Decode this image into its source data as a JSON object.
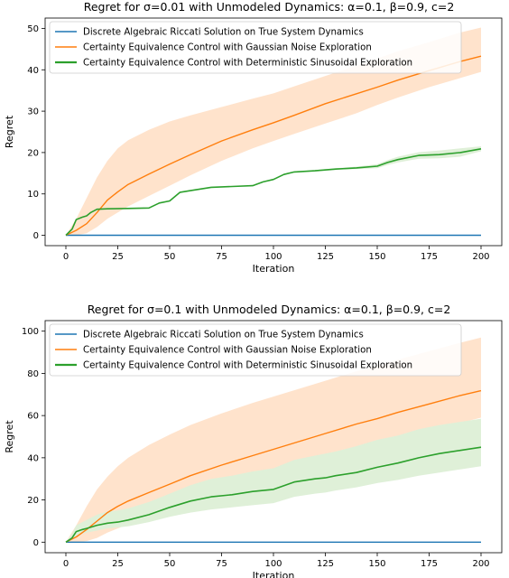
{
  "chart_data": [
    {
      "type": "line",
      "title": "Regret for σ=0.01 with Unmodeled Dynamics: α=0.1, β=0.9, c=2",
      "xlabel": "Iteration",
      "ylabel": "Regret",
      "xlim": [
        -10,
        210
      ],
      "ylim": [
        -2.5,
        52.5
      ],
      "xticks": [
        0,
        25,
        50,
        75,
        100,
        125,
        150,
        175,
        200
      ],
      "yticks": [
        0,
        10,
        20,
        30,
        40,
        50
      ],
      "grid": false,
      "legend_position": "top-left",
      "series": [
        {
          "name": "Discrete Algebraic Riccati Solution on True System Dynamics",
          "color": "#1f77b4",
          "x": [
            0,
            200
          ],
          "y": [
            0,
            0
          ]
        },
        {
          "name": "Certainty Equivalence Control with Gaussian Noise Exploration",
          "color": "#ff7f0e",
          "x": [
            0,
            5,
            10,
            15,
            20,
            25,
            30,
            40,
            50,
            60,
            75,
            90,
            100,
            110,
            125,
            140,
            150,
            160,
            175,
            190,
            200
          ],
          "y": [
            0,
            1.2,
            2.8,
            5.5,
            8.5,
            10.5,
            12.3,
            14.8,
            17.2,
            19.5,
            22.8,
            25.5,
            27.2,
            29,
            31.8,
            34.2,
            35.8,
            37.5,
            39.8,
            42,
            43.3
          ],
          "band_upper": [
            0,
            4,
            9,
            14,
            18,
            21,
            23,
            25.5,
            27.5,
            29,
            31,
            33,
            34.3,
            36,
            38.5,
            41,
            42.7,
            44.5,
            46.7,
            49,
            50.2
          ],
          "band_lower": [
            0,
            0,
            0.5,
            2,
            4,
            5.5,
            7,
            9.5,
            12,
            14.5,
            18,
            21,
            22.8,
            24.5,
            27,
            29.5,
            31.5,
            33.3,
            35.8,
            38,
            39.5
          ],
          "band_color": "#ffe3cc"
        },
        {
          "name": "Certainty Equivalence Control with Deterministic Sinusoidal Exploration",
          "color": "#2ca02c",
          "x": [
            0,
            3,
            5,
            8,
            10,
            12,
            15,
            20,
            30,
            40,
            45,
            50,
            55,
            60,
            70,
            80,
            90,
            95,
            100,
            105,
            110,
            120,
            130,
            140,
            150,
            155,
            160,
            170,
            180,
            190,
            200
          ],
          "y": [
            0,
            1.5,
            3.8,
            4.4,
            4.7,
            5.5,
            6.3,
            6.4,
            6.5,
            6.6,
            7.8,
            8.3,
            10.4,
            10.8,
            11.6,
            11.8,
            12,
            12.9,
            13.5,
            14.7,
            15.3,
            15.6,
            16,
            16.3,
            16.7,
            17.6,
            18.3,
            19.3,
            19.5,
            20,
            20.9
          ],
          "band_upper": [
            0,
            1.5,
            3.8,
            4.4,
            4.7,
            5.5,
            6.3,
            6.4,
            6.5,
            6.6,
            7.8,
            8.3,
            10.4,
            10.8,
            11.6,
            11.8,
            12.1,
            13,
            13.6,
            14.8,
            15.4,
            15.8,
            16.2,
            16.6,
            17.2,
            18.2,
            19,
            20.1,
            20.5,
            21,
            21.5
          ],
          "band_lower": [
            0,
            1.5,
            3.8,
            4.4,
            4.7,
            5.5,
            6.3,
            6.4,
            6.5,
            6.6,
            7.8,
            8.3,
            10.4,
            10.8,
            11.6,
            11.8,
            11.9,
            12.8,
            13.4,
            14.6,
            15.2,
            15.4,
            15.8,
            16.0,
            16.2,
            17.0,
            17.6,
            18.5,
            18.6,
            19,
            20.3
          ],
          "band_color": "#dff0d8"
        }
      ]
    },
    {
      "type": "line",
      "title": "Regret for σ=0.1 with Unmodeled Dynamics: α=0.1, β=0.9, c=2",
      "xlabel": "Iteration",
      "ylabel": "Regret",
      "xlim": [
        -10,
        210
      ],
      "ylim": [
        -5,
        105
      ],
      "xticks": [
        0,
        25,
        50,
        75,
        100,
        125,
        150,
        175,
        200
      ],
      "yticks": [
        0,
        20,
        40,
        60,
        80,
        100
      ],
      "grid": false,
      "legend_position": "top-left",
      "series": [
        {
          "name": "Discrete Algebraic Riccati Solution on True System Dynamics",
          "color": "#1f77b4",
          "x": [
            0,
            200
          ],
          "y": [
            0,
            0
          ]
        },
        {
          "name": "Certainty Equivalence Control with Gaussian Noise Exploration",
          "color": "#ff7f0e",
          "x": [
            0,
            5,
            10,
            15,
            20,
            25,
            30,
            40,
            50,
            60,
            75,
            90,
            100,
            110,
            125,
            140,
            150,
            160,
            175,
            190,
            200
          ],
          "y": [
            0,
            2.5,
            6,
            10,
            14,
            17,
            19.5,
            23.5,
            27.5,
            31.5,
            36.5,
            41,
            44,
            47,
            51.5,
            56,
            58.5,
            61.5,
            65.5,
            69.5,
            71.8
          ],
          "band_upper": [
            0,
            8,
            17,
            25,
            31,
            36,
            40,
            46,
            51,
            55.5,
            61,
            66,
            69,
            72,
            76.5,
            81,
            83.5,
            86.5,
            90.5,
            94.5,
            97
          ],
          "band_lower": [
            0,
            0,
            0.5,
            2,
            4.5,
            6.5,
            8.5,
            12,
            15.5,
            19,
            23.5,
            28,
            31,
            34,
            38.5,
            43,
            45.5,
            48.5,
            52.5,
            56.5,
            59
          ],
          "band_color": "#ffe3cc"
        },
        {
          "name": "Certainty Equivalence Control with Deterministic Sinusoidal Exploration",
          "color": "#2ca02c",
          "x": [
            0,
            3,
            5,
            8,
            10,
            15,
            20,
            25,
            30,
            40,
            50,
            55,
            60,
            70,
            80,
            90,
            100,
            110,
            120,
            125,
            130,
            140,
            150,
            160,
            170,
            180,
            190,
            200
          ],
          "y": [
            0,
            2,
            5,
            6,
            6.5,
            8,
            9,
            9.5,
            10.5,
            13,
            16.5,
            18,
            19.5,
            21.5,
            22.5,
            24,
            25,
            28.5,
            30,
            30.5,
            31.5,
            33,
            35.5,
            37.5,
            40,
            42,
            43.5,
            45
          ],
          "band_upper": [
            0,
            4,
            8,
            9.5,
            10.5,
            13,
            14.5,
            15,
            16,
            19,
            23,
            25,
            27,
            30,
            31.5,
            33.5,
            35,
            39,
            41,
            42,
            43,
            45.5,
            48.5,
            50.5,
            53.5,
            55.5,
            57,
            58.5
          ],
          "band_lower": [
            0,
            1,
            3,
            4,
            4.5,
            5.5,
            6.5,
            7,
            7.5,
            9.5,
            12,
            13,
            14,
            15.5,
            16.5,
            17.5,
            18.5,
            21.5,
            23,
            23.5,
            24.5,
            26,
            28,
            29.5,
            31.5,
            33,
            34.5,
            36
          ],
          "band_color": "#dff0d8"
        }
      ]
    }
  ]
}
